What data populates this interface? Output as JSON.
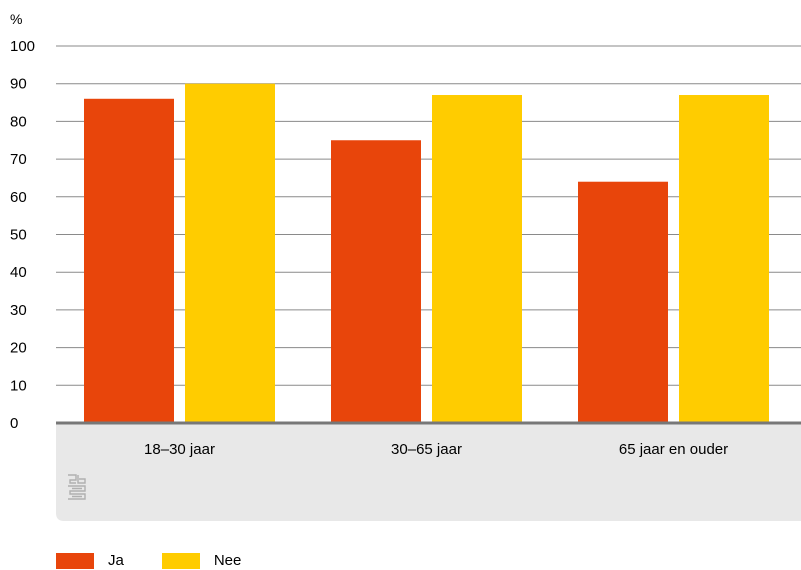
{
  "chart_data": {
    "type": "bar",
    "unit": "%",
    "categories": [
      "18–30 jaar",
      "30–65 jaar",
      "65 jaar en ouder"
    ],
    "series": [
      {
        "name": "Ja",
        "color": "#E8450B",
        "values": [
          86,
          75,
          64
        ]
      },
      {
        "name": "Nee",
        "color": "#FFCC00",
        "values": [
          90,
          87,
          87
        ]
      }
    ],
    "yticks": [
      "0",
      "10",
      "20",
      "30",
      "40",
      "50",
      "60",
      "70",
      "80",
      "90",
      "100"
    ],
    "ylim": [
      0,
      100
    ],
    "grid": true,
    "legend_position": "bottom-left"
  },
  "colors": {
    "grid": "#8a8a8a",
    "axis": "#777777",
    "category_band": "#e8e8e8",
    "logo": "#b0b0b0"
  },
  "logo": {
    "name": "cbs-logo"
  }
}
